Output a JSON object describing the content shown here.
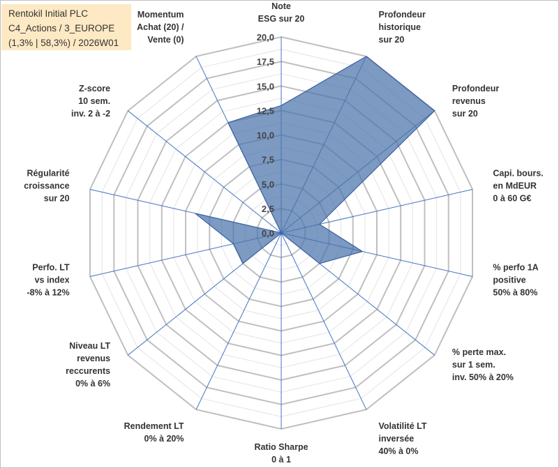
{
  "title_lines": [
    "Rentokil Initial PLC",
    "C4_Actions / 3_EUROPE",
    "(1,3% | 58,3%) / 2026W01"
  ],
  "chart_data": {
    "type": "radar",
    "title": "Rentokil Initial PLC",
    "rmin": 0,
    "rmax": 20,
    "tick_values": [
      0,
      2.5,
      5,
      7.5,
      10,
      12.5,
      15,
      17.5,
      20
    ],
    "tick_labels": [
      "0,0",
      "2,5",
      "5,0",
      "7,5",
      "10,0",
      "12,5",
      "15,0",
      "17,5",
      "20,0"
    ],
    "minor_step": 1.25,
    "categories": [
      [
        "Note",
        "ESG sur 20"
      ],
      [
        "Profondeur",
        "historique",
        "sur 20"
      ],
      [
        "Profondeur",
        "revenus",
        "sur 20"
      ],
      [
        "Capi. bours.",
        "en MdEUR",
        "0 à 60 G€"
      ],
      [
        "% perfo 1A",
        "positive",
        "50% à 80%"
      ],
      [
        "% perte max.",
        "sur 1 sem.",
        "inv. 50% à 20%"
      ],
      [
        "Volatilité LT",
        "inversée",
        "40% à 0%"
      ],
      [
        "Ratio Sharpe",
        "0 à 1"
      ],
      [
        "Rendement LT",
        "0% à 20%"
      ],
      [
        "Niveau LT",
        "revenus",
        "reccurents",
        "0% à 6%"
      ],
      [
        "Perfo. LT",
        "vs index",
        "-8% à 12%"
      ],
      [
        "Régularité",
        "croissance",
        "sur 20"
      ],
      [
        "Z-score",
        "10 sem.",
        "inv. 2 à -2"
      ],
      [
        "Momentum",
        "Achat (20) /",
        "Vente (0)"
      ]
    ],
    "series": [
      {
        "name": "Rentokil Initial PLC",
        "values": [
          13.0,
          20.0,
          20.0,
          4.0,
          8.5,
          5.0,
          0.0,
          0.0,
          0.0,
          5.0,
          5.0,
          9.0,
          0.0,
          12.5
        ],
        "color": "#4a73aa"
      }
    ],
    "grid": true,
    "grid_color": "#bfbfbf",
    "minor_grid_color": "#e3e3e3",
    "spoke_color": "#4472c4"
  }
}
